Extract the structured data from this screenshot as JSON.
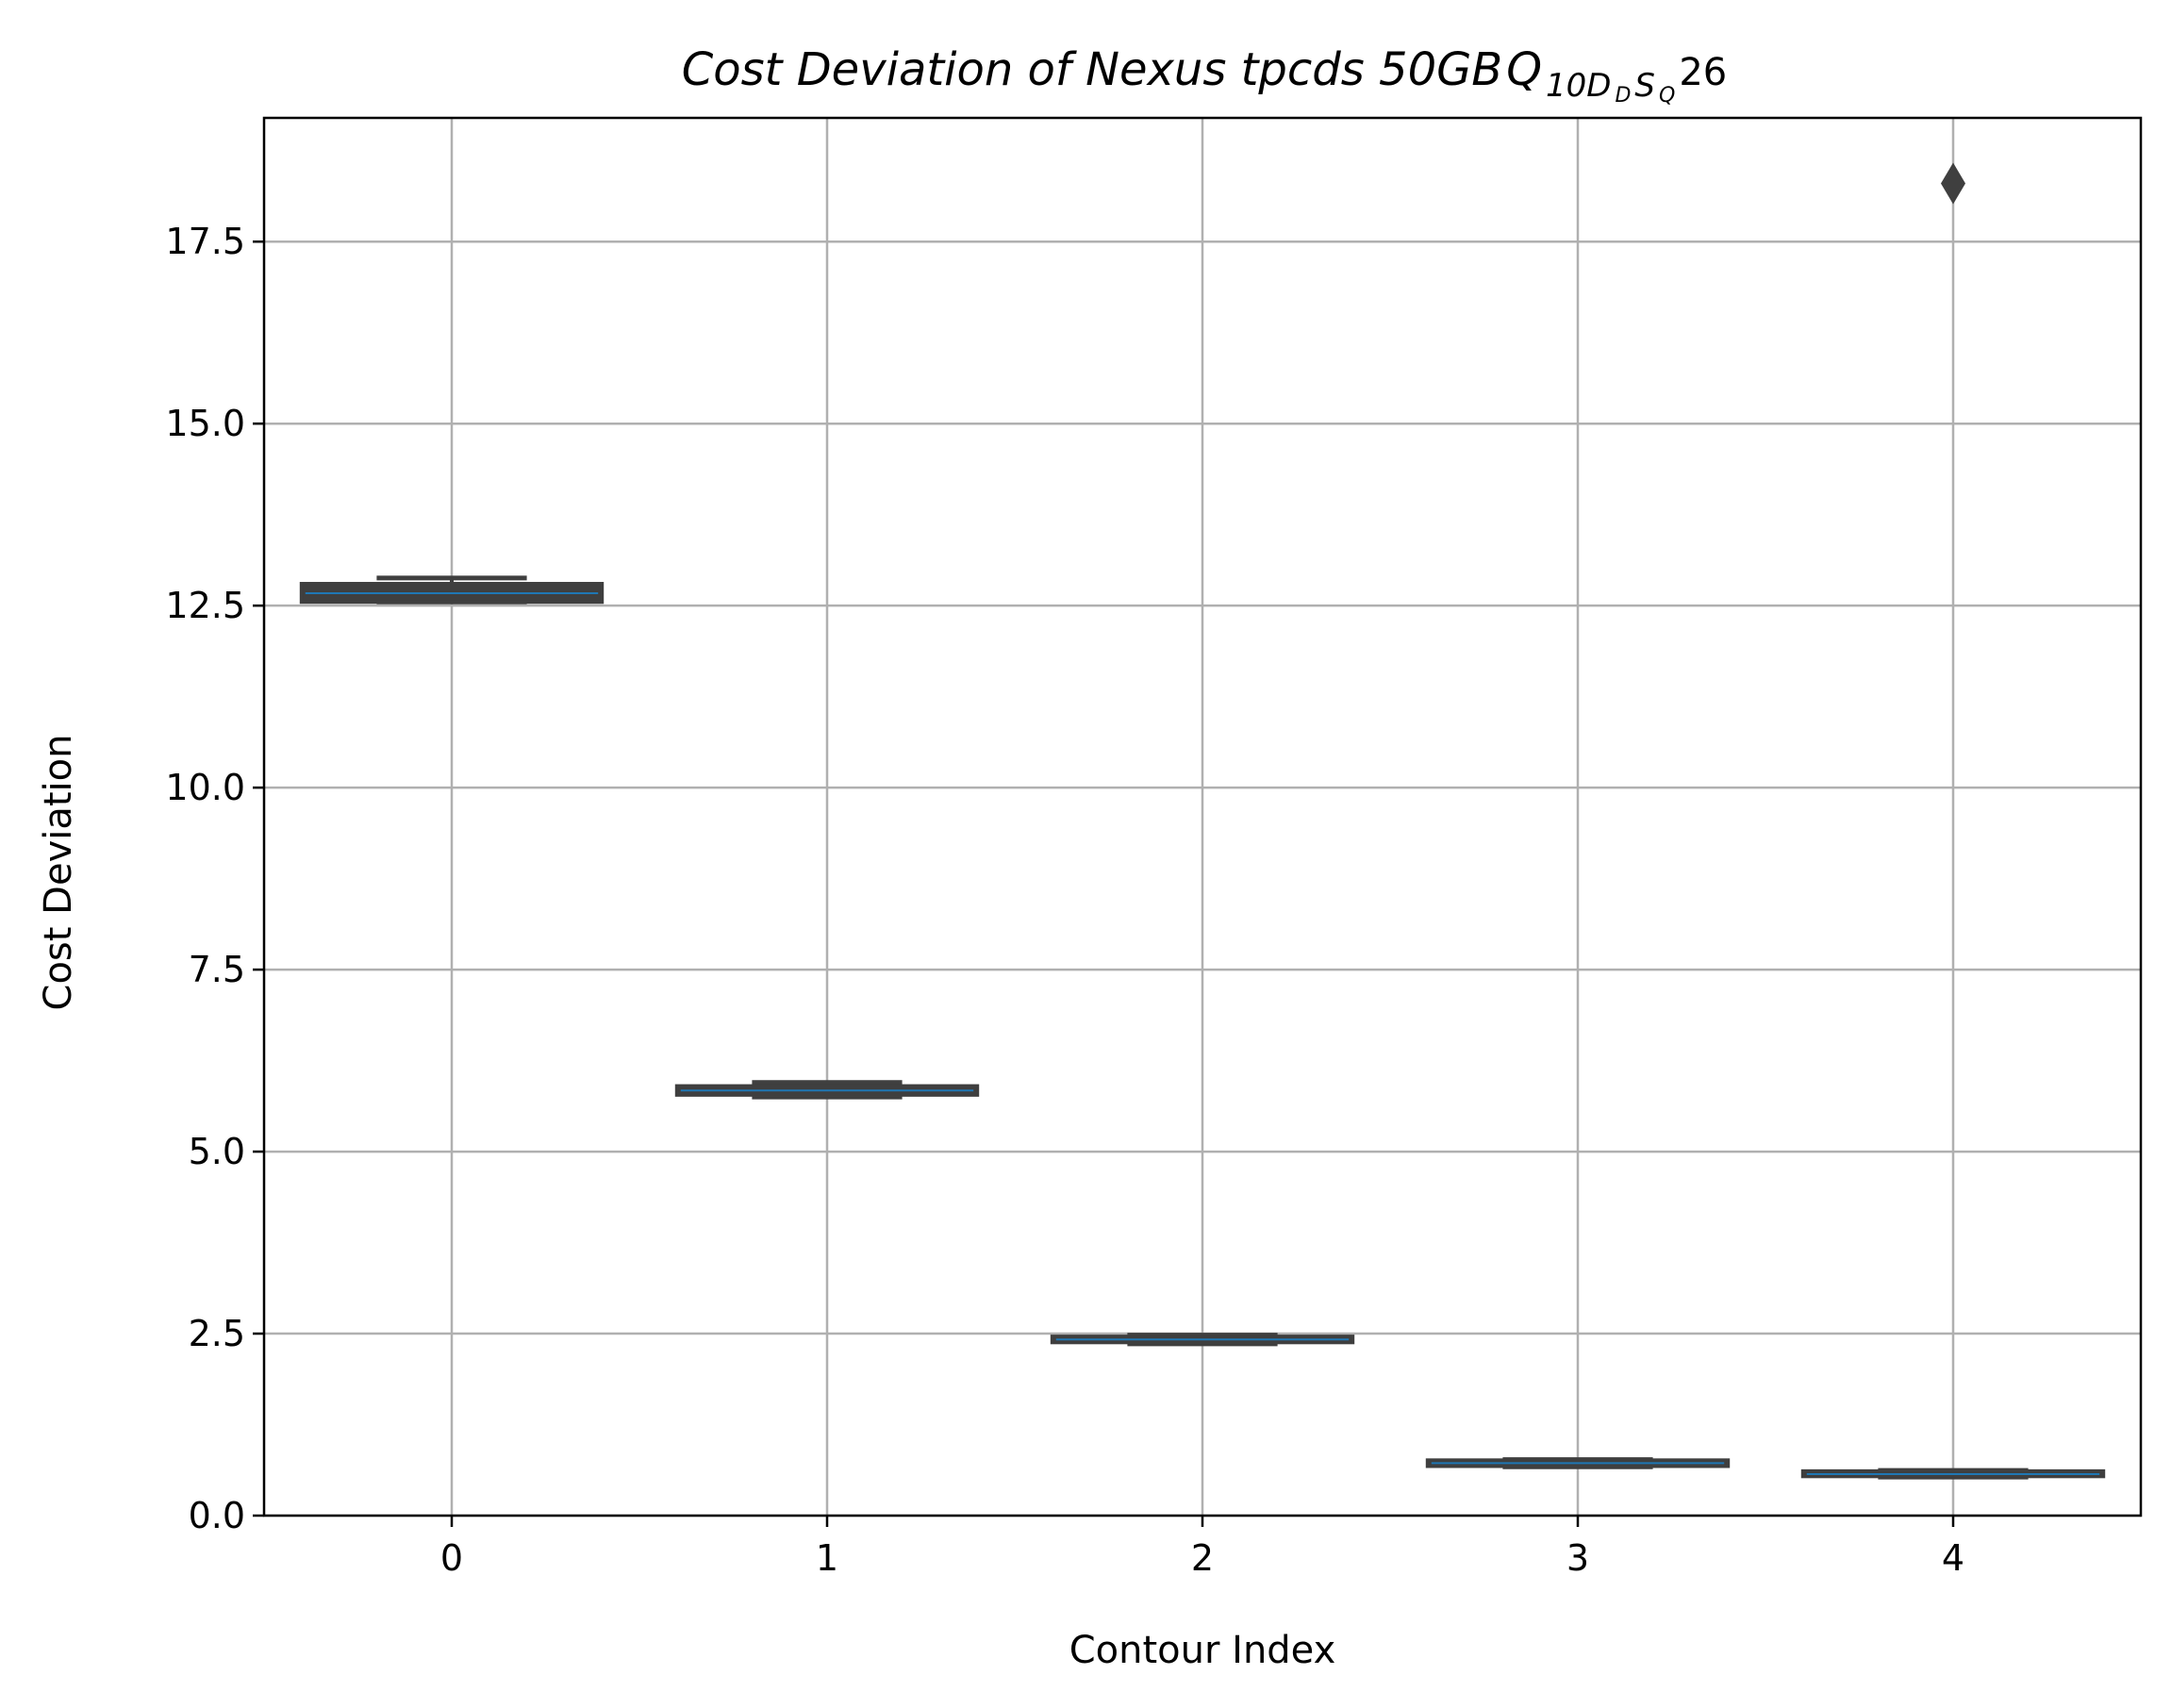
{
  "chart_data": {
    "type": "box",
    "title": "Cost Deviation of Nexus tpcds  50GB",
    "title_math": {
      "base": "Q",
      "sub_main": "10D",
      "sub_d": "D",
      "sub_s": "S",
      "sub_q": "Q",
      "tail": "26"
    },
    "xlabel": "Contour Index",
    "ylabel": "Cost Deviation",
    "categories": [
      "0",
      "1",
      "2",
      "3",
      "4"
    ],
    "ylim": [
      0,
      19.2
    ],
    "yticks": [
      0.0,
      2.5,
      5.0,
      7.5,
      10.0,
      12.5,
      15.0,
      17.5
    ],
    "ytick_labels": [
      "0.0",
      "2.5",
      "5.0",
      "7.5",
      "10.0",
      "12.5",
      "15.0",
      "17.5"
    ],
    "grid": true,
    "boxes": [
      {
        "category": "0",
        "q1": 12.55,
        "median": 12.67,
        "q3": 12.8,
        "whisker_low": 12.55,
        "whisker_high": 12.88,
        "outliers": []
      },
      {
        "category": "1",
        "q1": 5.78,
        "median": 5.84,
        "q3": 5.9,
        "whisker_low": 5.75,
        "whisker_high": 5.95,
        "outliers": []
      },
      {
        "category": "2",
        "q1": 2.38,
        "median": 2.42,
        "q3": 2.46,
        "whisker_low": 2.36,
        "whisker_high": 2.48,
        "outliers": []
      },
      {
        "category": "3",
        "q1": 0.68,
        "median": 0.72,
        "q3": 0.76,
        "whisker_low": 0.67,
        "whisker_high": 0.77,
        "outliers": []
      },
      {
        "category": "4",
        "q1": 0.54,
        "median": 0.57,
        "q3": 0.61,
        "whisker_low": 0.53,
        "whisker_high": 0.62,
        "outliers": [
          18.3
        ]
      }
    ],
    "colors": {
      "box": "#3f3f3f",
      "median_line": "#1f77b4",
      "grid": "#b0b0b0",
      "axes": "#000000"
    }
  }
}
